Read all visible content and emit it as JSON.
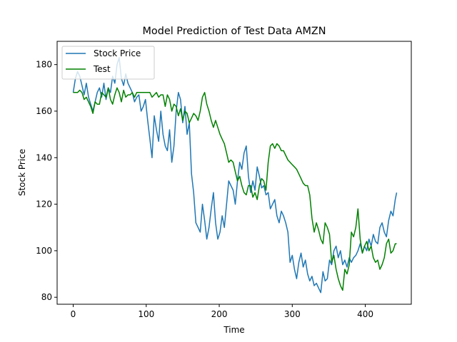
{
  "chart_data": {
    "type": "line",
    "title": "Model Prediction of Test Data AMZN",
    "xlabel": "Time",
    "ylabel": "Stock Price",
    "xlim": [
      -22,
      463
    ],
    "ylim": [
      77,
      190
    ],
    "xticks": [
      0,
      100,
      200,
      300,
      400
    ],
    "yticks": [
      80,
      100,
      120,
      140,
      160,
      180
    ],
    "grid": false,
    "legend_position": "top-left",
    "series": [
      {
        "name": "Stock Price",
        "color": "#1f77b4",
        "x": [
          0,
          3,
          6,
          9,
          12,
          15,
          18,
          21,
          24,
          27,
          30,
          33,
          36,
          39,
          42,
          45,
          48,
          51,
          54,
          57,
          60,
          63,
          66,
          69,
          72,
          75,
          78,
          81,
          84,
          87,
          90,
          93,
          96,
          99,
          102,
          105,
          108,
          111,
          114,
          117,
          120,
          123,
          126,
          129,
          132,
          135,
          138,
          141,
          144,
          147,
          150,
          153,
          156,
          159,
          162,
          165,
          168,
          171,
          174,
          177,
          180,
          183,
          186,
          189,
          192,
          195,
          198,
          201,
          204,
          207,
          210,
          213,
          216,
          219,
          222,
          225,
          228,
          231,
          234,
          237,
          240,
          243,
          246,
          249,
          252,
          255,
          258,
          261,
          264,
          267,
          270,
          273,
          276,
          279,
          282,
          285,
          288,
          291,
          294,
          297,
          300,
          303,
          306,
          309,
          312,
          315,
          318,
          321,
          324,
          327,
          330,
          333,
          336,
          339,
          342,
          345,
          348,
          351,
          354,
          357,
          360,
          363,
          366,
          369,
          372,
          375,
          378,
          381,
          384,
          387,
          390,
          393,
          396,
          399,
          402,
          405,
          408,
          411,
          414,
          417,
          420,
          423,
          426,
          429,
          432,
          435,
          438,
          441,
          443
        ],
        "values": [
          168,
          174,
          177,
          175,
          171,
          167,
          172,
          166,
          163,
          160,
          164,
          168,
          170,
          166,
          172,
          165,
          170,
          168,
          175,
          172,
          180,
          183,
          174,
          171,
          176,
          172,
          170,
          168,
          164,
          166,
          167,
          160,
          162,
          165,
          156,
          148,
          140,
          158,
          152,
          147,
          160,
          150,
          145,
          143,
          152,
          138,
          145,
          160,
          168,
          165,
          155,
          162,
          150,
          155,
          133,
          125,
          112,
          110,
          108,
          120,
          113,
          105,
          110,
          118,
          125,
          112,
          105,
          108,
          115,
          110,
          120,
          130,
          128,
          126,
          120,
          130,
          138,
          135,
          142,
          145,
          132,
          125,
          130,
          126,
          136,
          132,
          127,
          128,
          124,
          125,
          118,
          120,
          122,
          115,
          112,
          117,
          115,
          112,
          108,
          95,
          98,
          92,
          88,
          95,
          99,
          93,
          96,
          90,
          87,
          89,
          85,
          86,
          84,
          82,
          91,
          87,
          88,
          96,
          94,
          100,
          102,
          97,
          100,
          94,
          96,
          93,
          97,
          95,
          97,
          98,
          100,
          103,
          99,
          102,
          100,
          105,
          102,
          107,
          104,
          103,
          110,
          112,
          108,
          106,
          113,
          117,
          115,
          122,
          125
        ]
      },
      {
        "name": "Test",
        "color": "#008000",
        "x": [
          0,
          3,
          6,
          9,
          12,
          15,
          18,
          21,
          24,
          27,
          30,
          33,
          36,
          39,
          42,
          45,
          48,
          51,
          54,
          57,
          60,
          63,
          66,
          69,
          72,
          75,
          78,
          81,
          84,
          87,
          90,
          93,
          96,
          99,
          102,
          105,
          108,
          111,
          114,
          117,
          120,
          123,
          126,
          129,
          132,
          135,
          138,
          141,
          144,
          147,
          150,
          153,
          156,
          159,
          162,
          165,
          168,
          171,
          174,
          177,
          180,
          183,
          186,
          189,
          192,
          195,
          198,
          201,
          204,
          207,
          210,
          213,
          216,
          219,
          222,
          225,
          228,
          231,
          234,
          237,
          240,
          243,
          246,
          249,
          252,
          255,
          258,
          261,
          264,
          267,
          270,
          273,
          276,
          279,
          282,
          285,
          288,
          291,
          294,
          297,
          300,
          303,
          306,
          309,
          312,
          315,
          318,
          321,
          324,
          327,
          330,
          333,
          336,
          339,
          342,
          345,
          348,
          351,
          354,
          357,
          360,
          363,
          366,
          369,
          372,
          375,
          378,
          381,
          384,
          387,
          390,
          393,
          396,
          399,
          402,
          405,
          408,
          411,
          414,
          417,
          420,
          423,
          426,
          429,
          432,
          435,
          438,
          441,
          443
        ],
        "values": [
          168,
          168,
          168,
          169,
          168,
          165,
          166,
          164,
          162,
          159,
          164,
          163,
          163,
          168,
          167,
          166,
          170,
          165,
          163,
          167,
          170,
          168,
          164,
          169,
          166,
          167,
          167,
          168,
          166,
          168,
          168,
          168,
          168,
          168,
          168,
          168,
          166,
          167,
          168,
          166,
          167,
          167,
          162,
          167,
          165,
          160,
          163,
          162,
          158,
          161,
          156,
          160,
          159,
          155,
          157,
          159,
          158,
          156,
          160,
          166,
          168,
          163,
          160,
          156,
          153,
          156,
          153,
          150,
          148,
          146,
          142,
          138,
          139,
          138,
          134,
          130,
          132,
          128,
          125,
          124,
          128,
          128,
          123,
          125,
          122,
          128,
          131,
          130,
          126,
          138,
          145,
          146,
          144,
          146,
          145,
          143,
          143,
          141,
          139,
          138,
          137,
          136,
          135,
          133,
          131,
          129,
          128,
          128,
          124,
          114,
          108,
          112,
          109,
          105,
          103,
          112,
          110,
          107,
          95,
          98,
          92,
          88,
          85,
          83,
          92,
          90,
          94,
          108,
          106,
          110,
          118,
          105,
          99,
          102,
          104,
          100,
          102,
          97,
          95,
          96,
          92,
          94,
          97,
          103,
          105,
          99,
          100,
          103,
          103
        ]
      }
    ]
  }
}
